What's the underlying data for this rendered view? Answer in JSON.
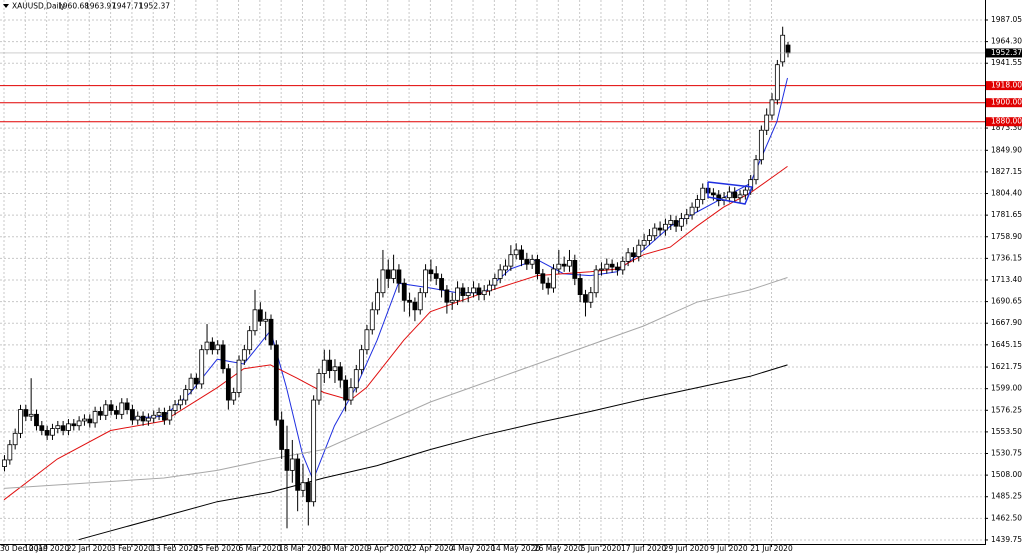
{
  "chart_data": {
    "type": "candlestick",
    "title": "XAUUSD,Daily",
    "categories": [
      "30 Dec 2019",
      null,
      null,
      null,
      null,
      null,
      null,
      null,
      "10 Jan 2020",
      null,
      null,
      null,
      null,
      null,
      null,
      null,
      "22 Jan 2020",
      null,
      null,
      null,
      null,
      null,
      null,
      null,
      "3 Feb 2020",
      null,
      null,
      null,
      null,
      null,
      null,
      null,
      "13 Feb 2020",
      null,
      null,
      null,
      null,
      null,
      null,
      null,
      "25 Feb 2020",
      null,
      null,
      null,
      null,
      null,
      null,
      null,
      "6 Mar 2020",
      null,
      null,
      null,
      null,
      null,
      null,
      null,
      "18 Mar 2020",
      null,
      null,
      null,
      null,
      null,
      null,
      null,
      "30 Mar 2020",
      null,
      null,
      null,
      null,
      null,
      null,
      null,
      "9 Apr 2020",
      null,
      null,
      null,
      null,
      null,
      null,
      null,
      "22 Apr 2020",
      null,
      null,
      null,
      null,
      null,
      null,
      null,
      "4 May 2020",
      null,
      null,
      null,
      null,
      null,
      null,
      null,
      "14 May 2020",
      null,
      null,
      null,
      null,
      null,
      null,
      null,
      "26 May 2020",
      null,
      null,
      null,
      null,
      null,
      null,
      null,
      "5 Jun 2020",
      null,
      null,
      null,
      null,
      null,
      null,
      null,
      "17 Jun 2020",
      null,
      null,
      null,
      null,
      null,
      null,
      null,
      "29 Jun 2020",
      null,
      null,
      null,
      null,
      null,
      null,
      null,
      "9 Jul 2020",
      null,
      null,
      null,
      null,
      null,
      null,
      null,
      "21 Jul 2020",
      null,
      null,
      null
    ],
    "open": [
      1517,
      1524,
      1540,
      1552,
      1577,
      1570,
      1572,
      1560,
      1555,
      1550,
      1557,
      1560,
      1555,
      1562,
      1560,
      1565,
      1567,
      1563,
      1575,
      1571,
      1582,
      1576,
      1572,
      1584,
      1577,
      1566,
      1570,
      1565,
      1568,
      1571,
      1574,
      1566,
      1576,
      1582,
      1587,
      1598,
      1610,
      1604,
      1640,
      1648,
      1640,
      1645,
      1620,
      1587,
      1595,
      1629,
      1640,
      1660,
      1682,
      1670,
      1672,
      1645,
      1566,
      1535,
      1513,
      1525,
      1492,
      1500,
      1480,
      1587,
      1615,
      1629,
      1618,
      1622,
      1608,
      1587,
      1600,
      1619,
      1640,
      1661,
      1682,
      1700,
      1724,
      1715,
      1724,
      1710,
      1692,
      1690,
      1682,
      1700,
      1724,
      1720,
      1715,
      1703,
      1690,
      1692,
      1705,
      1697,
      1700,
      1705,
      1698,
      1702,
      1708,
      1715,
      1724,
      1728,
      1740,
      1745,
      1735,
      1730,
      1735,
      1720,
      1710,
      1705,
      1725,
      1730,
      1728,
      1734,
      1715,
      1698,
      1690,
      1700,
      1724,
      1725,
      1730,
      1727,
      1724,
      1733,
      1742,
      1738,
      1750,
      1755,
      1760,
      1768,
      1766,
      1772,
      1776,
      1770,
      1778,
      1782,
      1790,
      1798,
      1810,
      1805,
      1803,
      1797,
      1800,
      1806,
      1800,
      1803,
      1808,
      1819,
      1840,
      1871,
      1887,
      1903,
      1943,
      1960.68
    ],
    "high": [
      1529,
      1545,
      1557,
      1582,
      1582,
      1610,
      1577,
      1565,
      1560,
      1562,
      1565,
      1565,
      1567,
      1567,
      1570,
      1572,
      1572,
      1580,
      1580,
      1587,
      1587,
      1581,
      1589,
      1589,
      1582,
      1575,
      1575,
      1573,
      1576,
      1579,
      1579,
      1581,
      1587,
      1592,
      1603,
      1615,
      1615,
      1645,
      1667,
      1653,
      1650,
      1650,
      1625,
      1600,
      1634,
      1645,
      1665,
      1703,
      1690,
      1680,
      1677,
      1650,
      1575,
      1560,
      1545,
      1530,
      1520,
      1505,
      1592,
      1620,
      1640,
      1640,
      1630,
      1627,
      1613,
      1610,
      1624,
      1645,
      1666,
      1690,
      1715,
      1745,
      1735,
      1740,
      1730,
      1715,
      1700,
      1695,
      1705,
      1730,
      1735,
      1728,
      1720,
      1708,
      1700,
      1712,
      1710,
      1706,
      1712,
      1710,
      1708,
      1713,
      1720,
      1730,
      1735,
      1750,
      1752,
      1750,
      1742,
      1740,
      1740,
      1725,
      1716,
      1730,
      1745,
      1738,
      1745,
      1740,
      1720,
      1703,
      1706,
      1729,
      1732,
      1736,
      1735,
      1732,
      1738,
      1747,
      1748,
      1756,
      1762,
      1767,
      1773,
      1775,
      1778,
      1782,
      1781,
      1784,
      1788,
      1795,
      1803,
      1815,
      1816,
      1810,
      1808,
      1806,
      1812,
      1811,
      1808,
      1813,
      1824,
      1845,
      1876,
      1894,
      1910,
      1945,
      1980,
      1963.97
    ],
    "low": [
      1512,
      1519,
      1535,
      1547,
      1565,
      1565,
      1555,
      1550,
      1545,
      1545,
      1552,
      1550,
      1550,
      1555,
      1555,
      1560,
      1558,
      1558,
      1566,
      1566,
      1571,
      1567,
      1567,
      1572,
      1561,
      1561,
      1560,
      1560,
      1563,
      1566,
      1561,
      1561,
      1571,
      1577,
      1582,
      1593,
      1599,
      1599,
      1635,
      1635,
      1635,
      1615,
      1577,
      1582,
      1590,
      1624,
      1635,
      1655,
      1665,
      1650,
      1640,
      1560,
      1525,
      1452,
      1500,
      1470,
      1485,
      1455,
      1475,
      1582,
      1605,
      1610,
      1605,
      1600,
      1575,
      1582,
      1595,
      1614,
      1635,
      1656,
      1677,
      1695,
      1705,
      1710,
      1700,
      1680,
      1675,
      1670,
      1677,
      1695,
      1712,
      1708,
      1695,
      1678,
      1682,
      1687,
      1690,
      1690,
      1695,
      1692,
      1692,
      1697,
      1703,
      1710,
      1718,
      1723,
      1735,
      1728,
      1724,
      1725,
      1714,
      1703,
      1698,
      1700,
      1720,
      1722,
      1722,
      1708,
      1690,
      1675,
      1684,
      1695,
      1718,
      1720,
      1721,
      1718,
      1719,
      1728,
      1732,
      1733,
      1745,
      1750,
      1755,
      1760,
      1760,
      1766,
      1764,
      1765,
      1772,
      1777,
      1785,
      1793,
      1799,
      1797,
      1791,
      1792,
      1795,
      1795,
      1795,
      1798,
      1803,
      1814,
      1835,
      1866,
      1882,
      1898,
      1938,
      1947.71
    ],
    "close": [
      1524,
      1540,
      1552,
      1577,
      1570,
      1572,
      1560,
      1555,
      1550,
      1557,
      1560,
      1555,
      1562,
      1560,
      1565,
      1567,
      1563,
      1575,
      1571,
      1582,
      1576,
      1572,
      1584,
      1577,
      1566,
      1570,
      1565,
      1568,
      1571,
      1574,
      1566,
      1576,
      1582,
      1587,
      1598,
      1610,
      1604,
      1640,
      1648,
      1640,
      1645,
      1620,
      1587,
      1595,
      1629,
      1640,
      1660,
      1682,
      1670,
      1672,
      1645,
      1566,
      1535,
      1513,
      1525,
      1492,
      1500,
      1480,
      1587,
      1615,
      1629,
      1618,
      1622,
      1608,
      1587,
      1600,
      1619,
      1640,
      1661,
      1682,
      1700,
      1724,
      1715,
      1724,
      1710,
      1692,
      1690,
      1682,
      1700,
      1724,
      1720,
      1715,
      1703,
      1690,
      1692,
      1705,
      1697,
      1700,
      1705,
      1698,
      1702,
      1708,
      1715,
      1724,
      1728,
      1740,
      1745,
      1735,
      1730,
      1735,
      1720,
      1710,
      1705,
      1725,
      1730,
      1728,
      1734,
      1715,
      1698,
      1690,
      1700,
      1724,
      1725,
      1730,
      1727,
      1724,
      1733,
      1742,
      1738,
      1750,
      1755,
      1760,
      1768,
      1766,
      1772,
      1776,
      1770,
      1778,
      1782,
      1790,
      1798,
      1810,
      1805,
      1803,
      1797,
      1800,
      1806,
      1800,
      1803,
      1808,
      1819,
      1840,
      1871,
      1887,
      1903,
      1940,
      1971,
      1952.37
    ],
    "lines": [
      {
        "color": "#1f2fe0",
        "x": [
          24,
          30,
          35,
          40,
          45,
          50,
          53,
          56,
          58,
          62,
          66,
          70,
          74,
          80,
          85,
          90,
          95,
          100,
          105,
          110,
          115,
          120,
          125,
          130,
          135,
          140,
          145,
          147
        ],
        "values": [
          1568,
          1570,
          1595,
          1630,
          1625,
          1660,
          1600,
          1530,
          1503,
          1560,
          1600,
          1650,
          1710,
          1705,
          1700,
          1700,
          1725,
          1735,
          1720,
          1718,
          1722,
          1745,
          1770,
          1785,
          1800,
          1815,
          1880,
          1926
        ]
      },
      {
        "color": "#e01010",
        "x": [
          0,
          10,
          20,
          30,
          40,
          45,
          50,
          55,
          60,
          65,
          68,
          75,
          80,
          90,
          100,
          110,
          115,
          120,
          125,
          130,
          135,
          140,
          145,
          147
        ],
        "values": [
          1482,
          1525,
          1555,
          1565,
          1600,
          1620,
          1624,
          1610,
          1595,
          1587,
          1600,
          1650,
          1680,
          1700,
          1718,
          1722,
          1725,
          1740,
          1748,
          1770,
          1790,
          1805,
          1825,
          1833
        ]
      },
      {
        "color": "#a8a8a8",
        "x": [
          0,
          30,
          40,
          50,
          60,
          70,
          80,
          90,
          100,
          110,
          120,
          130,
          140,
          147
        ],
        "values": [
          1494,
          1505,
          1513,
          1525,
          1535,
          1560,
          1585,
          1605,
          1625,
          1645,
          1665,
          1690,
          1703,
          1716
        ]
      },
      {
        "color": "#000000",
        "x": [
          14,
          40,
          50,
          60,
          70,
          80,
          90,
          100,
          110,
          120,
          130,
          140,
          147
        ],
        "values": [
          1440,
          1480,
          1490,
          1505,
          1518,
          1535,
          1550,
          1563,
          1575,
          1588,
          1600,
          1612,
          1624
        ]
      }
    ],
    "levels": [
      {
        "value": 1918,
        "label": "1918.00"
      },
      {
        "value": 1900,
        "label": "1900.00"
      },
      {
        "value": 1880,
        "label": "1880.00"
      }
    ],
    "level_color": "#e00000",
    "last_price": 1952.37,
    "ylim": [
      1435.5,
      2008.1
    ],
    "yticks": [
      1987.05,
      {
        "value": 1964.3,
        "label": "1964.30"
      },
      1941.55,
      {
        "value": 1873.3,
        "label": "1873.30"
      },
      {
        "value": 1849.9,
        "label": "1849.90"
      },
      1827.15,
      {
        "value": 1804.4,
        "label": "1804.40"
      },
      1781.65,
      {
        "value": 1758.9,
        "label": "1758.90"
      },
      1736.15,
      {
        "value": 1713.4,
        "label": "1713.40"
      },
      1690.65,
      {
        "value": 1667.9,
        "label": "1667.90"
      },
      1645.15,
      1621.75,
      {
        "value": 1599,
        "label": "1599.00"
      },
      1576.25,
      {
        "value": 1553.5,
        "label": "1553.50"
      },
      1530.75,
      {
        "value": 1508,
        "label": "1508.00"
      },
      1485.25,
      {
        "value": 1462.5,
        "label": "1462.50"
      },
      1439.75
    ],
    "grid": true
  }
}
